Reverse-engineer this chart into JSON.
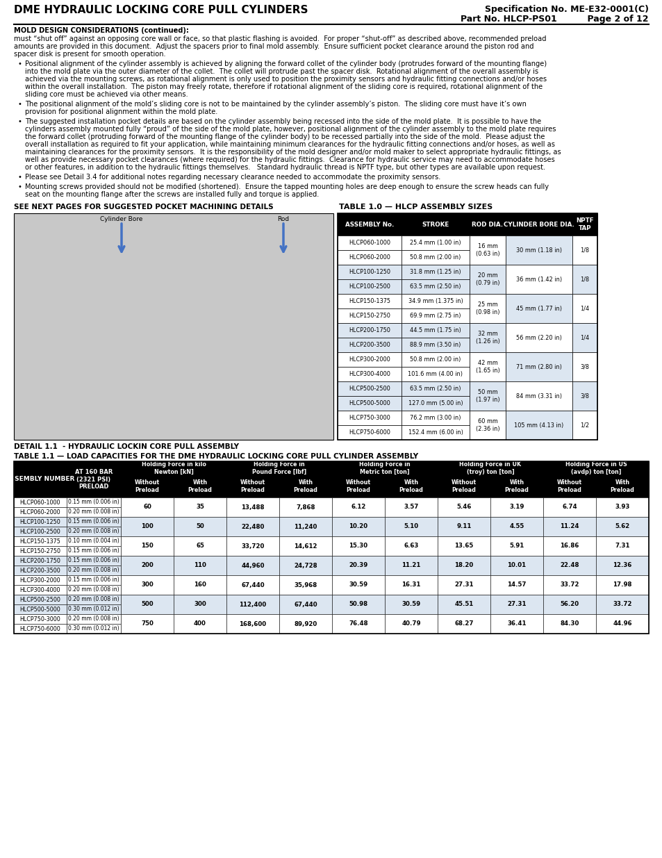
{
  "title_left": "DME HYDRAULIC LOCKING CORE PULL CYLINDERS",
  "title_right_line1": "Specification No. ME-E32-0001(C)",
  "title_right_line2": "Part No. HLCP-PS01          Page 2 of 12",
  "section_header": "MOLD DESIGN CONSIDERATIONS (continued):",
  "para1_lines": [
    "must “shut off” against an opposing core wall or face, so that plastic flashing is avoided.  For proper “shut-off” as described above, recommended preload",
    "amounts are provided in this document.  Adjust the spacers prior to final mold assembly.  Ensure sufficient pocket clearance around the piston rod and",
    "spacer disk is present for smooth operation."
  ],
  "bullets": [
    [
      "Positional alignment of the cylinder assembly is achieved by aligning the forward collet of the cylinder body (protrudes forward of the mounting flange)",
      "into the mold plate via the outer diameter of the collet.  The collet will protrude past the spacer disk.  Rotational alignment of the overall assembly is",
      "achieved via the mounting screws, as rotational alignment is only used to position the proximity sensors and hydraulic fitting connections and/or hoses",
      "within the overall installation.  The piston may freely rotate, therefore if rotational alignment of the sliding core is required, rotational alignment of the",
      "sliding core must be achieved via other means."
    ],
    [
      "The positional alignment of the mold’s sliding core is not to be maintained by the cylinder assembly’s piston.  The sliding core must have it’s own",
      "provision for positional alignment within the mold plate."
    ],
    [
      "The suggested installation pocket details are based on the cylinder assembly being recessed into the side of the mold plate.  It is possible to have the",
      "cylinders assembly mounted fully “proud” of the side of the mold plate, however, positional alignment of the cylinder assembly to the mold plate requires",
      "the forward collet (protruding forward of the mounting flange of the cylinder body) to be recessed partially into the side of the mold.  Please adjust the",
      "overall installation as required to fit your application, while maintaining minimum clearances for the hydraulic fitting connections and/or hoses, as well as",
      "maintaining clearances for the proximity sensors.  It is the responsibility of the mold designer and/or mold maker to select appropriate hydraulic fittings, as",
      "well as provide necessary pocket clearances (where required) for the hydraulic fittings.  Clearance for hydraulic service may need to accommodate hoses",
      "or other features, in addition to the hydraulic fittings themselves.   Standard hydraulic thread is NPTF type, but other types are available upon request."
    ],
    [
      "Please see Detail 3.4 for additional notes regarding necessary clearance needed to accommodate the proximity sensors."
    ],
    [
      "Mounting screws provided should not be modified (shortened).  Ensure the tapped mounting holes are deep enough to ensure the screw heads can fully",
      "seat on the mounting flange after the screws are installed fully and torque is applied."
    ]
  ],
  "section_left_label": "SEE NEXT PAGES FOR SUGGESTED POCKET MACHINING DETAILS",
  "detail_label": "DETAIL 1.1  - HYDRAULIC LOCKIN CORE PULL ASSEMBLY",
  "table1_title": "TABLE 1.0 — HLCP ASSEMBLY SIZES",
  "table1_headers": [
    "ASSEMBLY No.",
    "STROKE",
    "ROD DIA.",
    "CYLINDER BORE DIA.",
    "NPTF\nTAP"
  ],
  "table1_rows": [
    [
      "HLCP060-1000",
      "25.4 mm (1.00 in)",
      "16 mm\n(0.63 in)",
      "30 mm (1.18 in)",
      "1/8"
    ],
    [
      "HLCP060-2000",
      "50.8 mm (2.00 in)",
      "",
      "",
      ""
    ],
    [
      "HLCP100-1250",
      "31.8 mm (1.25 in)",
      "20 mm\n(0.79 in)",
      "36 mm (1.42 in)",
      "1/8"
    ],
    [
      "HLCP100-2500",
      "63.5 mm (2.50 in)",
      "",
      "",
      ""
    ],
    [
      "HLCP150-1375",
      "34.9 mm (1.375 in)",
      "25 mm\n(0.98 in)",
      "45 mm (1.77 in)",
      "1/4"
    ],
    [
      "HLCP150-2750",
      "69.9 mm (2.75 in)",
      "",
      "",
      ""
    ],
    [
      "HLCP200-1750",
      "44.5 mm (1.75 in)",
      "32 mm\n(1.26 in)",
      "56 mm (2.20 in)",
      "1/4"
    ],
    [
      "HLCP200-3500",
      "88.9 mm (3.50 in)",
      "",
      "",
      ""
    ],
    [
      "HLCP300-2000",
      "50.8 mm (2.00 in)",
      "42 mm\n(1.65 in)",
      "71 mm (2.80 in)",
      "3/8"
    ],
    [
      "HLCP300-4000",
      "101.6 mm (4.00 in)",
      "",
      "",
      ""
    ],
    [
      "HLCP500-2500",
      "63.5 mm (2.50 in)",
      "50 mm\n(1.97 in)",
      "84 mm (3.31 in)",
      "3/8"
    ],
    [
      "HLCP500-5000",
      "127.0 mm (5.00 in)",
      "",
      "",
      ""
    ],
    [
      "HLCP750-3000",
      "76.2 mm (3.00 in)",
      "60 mm\n(2.36 in)",
      "105 mm (4.13 in)",
      "1/2"
    ],
    [
      "HLCP750-6000",
      "152.4 mm (6.00 in)",
      "",
      "",
      ""
    ]
  ],
  "table2_title": "TABLE 1.1 — LOAD CAPACITIES FOR THE DME HYDRAULIC LOCKING CORE PULL CYLINDER ASSEMBLY",
  "table2_col1_header": "ASSEMBLY NUMBER",
  "table2_col2_header": "AT 160 BAR\n(2321 PSI)\nPRELOAD",
  "table2_group_headers": [
    "Holding Force in kilo\nNewton [kN]",
    "Holding Force in\nPound Force [lbf]",
    "Holding Force in\nMetric ton [ton]",
    "Holding Force in UK\n(troy) ton [ton]",
    "Holding Force in US\n(avdp) ton [ton]"
  ],
  "table2_sub_headers": [
    "Without\nPreload",
    "With\nPreload"
  ],
  "table2_rows": [
    [
      "HLCP060-1000",
      "0.15 mm (0.006 in)",
      "60",
      "35",
      "13,488",
      "7,868",
      "6.12",
      "3.57",
      "5.46",
      "3.19",
      "6.74",
      "3.93"
    ],
    [
      "HLCP060-2000",
      "0.20 mm (0.008 in)",
      "",
      "",
      "",
      "",
      "",
      "",
      "",
      "",
      "",
      ""
    ],
    [
      "HLCP100-1250",
      "0.15 mm (0.006 in)",
      "100",
      "50",
      "22,480",
      "11,240",
      "10.20",
      "5.10",
      "9.11",
      "4.55",
      "11.24",
      "5.62"
    ],
    [
      "HLCP100-2500",
      "0.20 mm (0.008 in)",
      "",
      "",
      "",
      "",
      "",
      "",
      "",
      "",
      "",
      ""
    ],
    [
      "HLCP150-1375",
      "0.10 mm (0.004 in)",
      "150",
      "65",
      "33,720",
      "14,612",
      "15.30",
      "6.63",
      "13.65",
      "5.91",
      "16.86",
      "7.31"
    ],
    [
      "HLCP150-2750",
      "0.15 mm (0.006 in)",
      "",
      "",
      "",
      "",
      "",
      "",
      "",
      "",
      "",
      ""
    ],
    [
      "HLCP200-1750",
      "0.15 mm (0.006 in)",
      "200",
      "110",
      "44,960",
      "24,728",
      "20.39",
      "11.21",
      "18.20",
      "10.01",
      "22.48",
      "12.36"
    ],
    [
      "HLCP200-3500",
      "0.20 mm (0.008 in)",
      "",
      "",
      "",
      "",
      "",
      "",
      "",
      "",
      "",
      ""
    ],
    [
      "HLCP300-2000",
      "0.15 mm (0.006 in)",
      "300",
      "160",
      "67,440",
      "35,968",
      "30.59",
      "16.31",
      "27.31",
      "14.57",
      "33.72",
      "17.98"
    ],
    [
      "HLCP300-4000",
      "0.20 mm (0.008 in)",
      "",
      "",
      "",
      "",
      "",
      "",
      "",
      "",
      "",
      ""
    ],
    [
      "HLCP500-2500",
      "0.20 mm (0.008 in)",
      "500",
      "300",
      "112,400",
      "67,440",
      "50.98",
      "30.59",
      "45.51",
      "27.31",
      "56.20",
      "33.72"
    ],
    [
      "HLCP500-5000",
      "0.30 mm (0.012 in)",
      "",
      "",
      "",
      "",
      "",
      "",
      "",
      "",
      "",
      ""
    ],
    [
      "HLCP750-3000",
      "0.20 mm (0.008 in)",
      "750",
      "400",
      "168,600",
      "89,920",
      "76.48",
      "40.79",
      "68.27",
      "36.41",
      "84.30",
      "44.96"
    ],
    [
      "HLCP750-6000",
      "0.30 mm (0.012 in)",
      "",
      "",
      "",
      "",
      "",
      "",
      "",
      "",
      "",
      ""
    ]
  ],
  "colors": {
    "header_bg": "#000000",
    "header_text": "#ffffff",
    "row_white": "#ffffff",
    "row_blue": "#dce6f1",
    "border": "#000000"
  }
}
